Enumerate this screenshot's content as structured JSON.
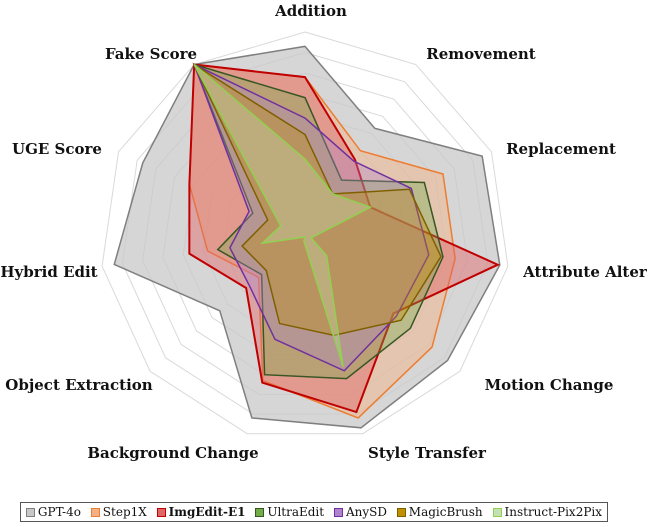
{
  "chart_data": {
    "type": "radar",
    "axes": [
      "Addition",
      "Removement",
      "Replacement",
      "Attribute Alter",
      "Motion Change",
      "Style Transfer",
      "Background Change",
      "Object Extraction",
      "Hybrid Edit",
      "UGE Score",
      "Fake Score"
    ],
    "rmax": 1.0,
    "rings": 10,
    "grid": true,
    "legend_position": "bottom",
    "series": [
      {
        "name": "GPT-4o",
        "color": "#7f7f7f",
        "fill": "#c9c8c8",
        "fill_opacity": 0.75,
        "bold": false,
        "values": [
          0.93,
          0.63,
          0.95,
          0.96,
          0.92,
          0.97,
          0.92,
          0.55,
          0.94,
          0.87,
          1.0
        ]
      },
      {
        "name": "Step1X",
        "color": "#ed7d31",
        "fill": "#f4b183",
        "fill_opacity": 0.45,
        "bold": false,
        "values": [
          0.78,
          0.5,
          0.74,
          0.74,
          0.82,
          0.92,
          0.73,
          0.3,
          0.48,
          0.62,
          1.0
        ]
      },
      {
        "name": "ImgEdit-E1",
        "color": "#c00000",
        "fill": "#e06666",
        "fill_opacity": 0.45,
        "bold": true,
        "values": [
          0.78,
          0.45,
          0.35,
          0.95,
          0.57,
          0.89,
          0.74,
          0.38,
          0.57,
          0.62,
          1.0
        ]
      },
      {
        "name": "UltraEdit",
        "color": "#375623",
        "fill": "#70ad47",
        "fill_opacity": 0.35,
        "bold": false,
        "values": [
          0.68,
          0.33,
          0.64,
          0.68,
          0.68,
          0.72,
          0.7,
          0.28,
          0.43,
          0.28,
          1.0
        ]
      },
      {
        "name": "AnySD",
        "color": "#7030a0",
        "fill": "#b084cc",
        "fill_opacity": 0.35,
        "bold": false,
        "values": [
          0.58,
          0.44,
          0.57,
          0.61,
          0.59,
          0.68,
          0.52,
          0.36,
          0.37,
          0.3,
          1.0
        ]
      },
      {
        "name": "MagicBrush",
        "color": "#7f6000",
        "fill": "#bf9000",
        "fill_opacity": 0.35,
        "bold": false,
        "values": [
          0.5,
          0.25,
          0.56,
          0.67,
          0.62,
          0.5,
          0.44,
          0.25,
          0.31,
          0.2,
          1.0
        ]
      },
      {
        "name": "Instruct-Pix2Pix",
        "color": "#92d050",
        "fill": "#c5e0b4",
        "fill_opacity": 0.35,
        "bold": false,
        "values": [
          0.38,
          0.25,
          0.35,
          0.03,
          0.14,
          0.66,
          0.02,
          0.0,
          0.21,
          0.13,
          1.0
        ]
      }
    ]
  }
}
